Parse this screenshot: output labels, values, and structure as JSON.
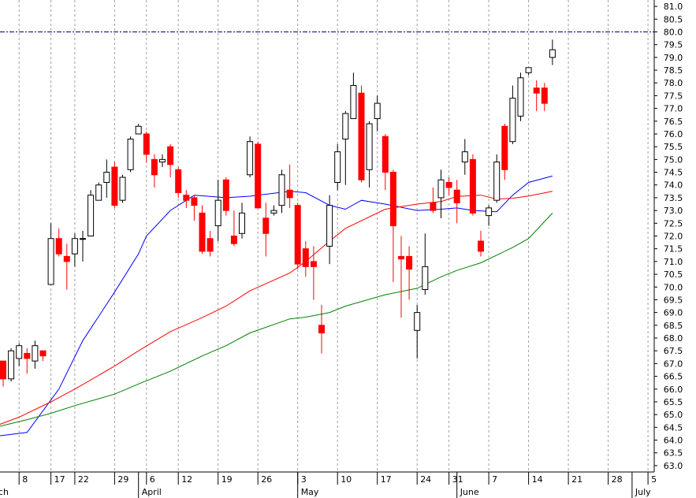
{
  "chart_data": {
    "type": "candlestick",
    "ylim": [
      62.75,
      81.25
    ],
    "y_ticks": [
      "63.0",
      "63.5",
      "64.0",
      "64.5",
      "65.0",
      "65.5",
      "66.0",
      "66.5",
      "67.0",
      "67.5",
      "68.0",
      "68.5",
      "69.0",
      "69.5",
      "70.0",
      "70.5",
      "71.0",
      "71.5",
      "72.0",
      "72.5",
      "73.0",
      "73.5",
      "74.0",
      "74.5",
      "75.0",
      "75.5",
      "76.0",
      "76.5",
      "77.0",
      "77.5",
      "78.0",
      "78.5",
      "79.0",
      "79.5",
      "80.0",
      "80.5",
      "81.0"
    ],
    "x_day_ticks": [
      {
        "label": "8",
        "col": 2
      },
      {
        "label": "17",
        "col": 6
      },
      {
        "label": "22",
        "col": 9
      },
      {
        "label": "29",
        "col": 14
      },
      {
        "label": "6",
        "col": 18
      },
      {
        "label": "12",
        "col": 22
      },
      {
        "label": "19",
        "col": 27
      },
      {
        "label": "26",
        "col": 32
      },
      {
        "label": "3",
        "col": 37
      },
      {
        "label": "10",
        "col": 42
      },
      {
        "label": "17",
        "col": 47
      },
      {
        "label": "24",
        "col": 52
      },
      {
        "label": "31",
        "col": 56
      },
      {
        "label": "7",
        "col": 61
      },
      {
        "label": "14",
        "col": 66
      },
      {
        "label": "21",
        "col": 71
      },
      {
        "label": "28",
        "col": 76
      },
      {
        "label": "5",
        "col": 81
      }
    ],
    "x_month_ticks": [
      {
        "label": "ch",
        "col": -1
      },
      {
        "label": "April",
        "col": 17
      },
      {
        "label": "May",
        "col": 37
      },
      {
        "label": "June",
        "col": 57
      },
      {
        "label": "July",
        "col": 79
      }
    ],
    "reference_level": 80.0,
    "candles": [
      [
        0,
        67.1,
        66.4,
        67.0,
        66.1
      ],
      [
        1,
        66.4,
        67.5,
        67.6,
        66.3
      ],
      [
        2,
        67.2,
        67.7,
        67.8,
        66.9
      ],
      [
        3,
        67.4,
        67.2,
        67.6,
        66.6
      ],
      [
        4,
        67.1,
        67.7,
        67.9,
        66.8
      ],
      [
        5,
        67.5,
        67.3,
        67.5,
        67.1
      ],
      [
        6,
        70.1,
        71.9,
        72.5,
        70.1
      ],
      [
        7,
        71.9,
        71.3,
        72.3,
        71.2
      ],
      [
        8,
        71.2,
        71.0,
        71.7,
        69.9
      ],
      [
        9,
        71.3,
        71.9,
        72.1,
        70.8
      ],
      [
        10,
        71.9,
        71.9,
        72.2,
        71.0
      ],
      [
        11,
        72.0,
        73.6,
        73.8,
        72.0
      ],
      [
        12,
        73.4,
        74.0,
        74.1,
        73.4
      ],
      [
        13,
        74.1,
        74.5,
        75.0,
        73.5
      ],
      [
        14,
        74.7,
        73.2,
        74.9,
        73.1
      ],
      [
        15,
        73.4,
        74.3,
        74.4,
        73.3
      ],
      [
        16,
        74.6,
        75.8,
        75.9,
        74.5
      ],
      [
        17,
        76.0,
        76.3,
        76.4,
        76.0
      ],
      [
        18,
        76.0,
        75.2,
        76.1,
        74.9
      ],
      [
        19,
        75.0,
        74.4,
        75.2,
        73.9
      ],
      [
        20,
        74.9,
        75.0,
        75.2,
        74.7
      ],
      [
        21,
        75.5,
        74.8,
        75.6,
        74.3
      ],
      [
        22,
        74.6,
        73.7,
        74.7,
        73.5
      ],
      [
        23,
        73.6,
        73.4,
        73.8,
        73.1
      ],
      [
        24,
        73.5,
        73.2,
        73.6,
        72.6
      ],
      [
        25,
        72.9,
        71.4,
        73.2,
        71.3
      ],
      [
        26,
        71.9,
        71.4,
        72.2,
        71.2
      ],
      [
        27,
        72.4,
        73.4,
        74.2,
        71.8
      ],
      [
        28,
        74.2,
        73.0,
        74.3,
        72.8
      ],
      [
        29,
        72.0,
        71.7,
        73.0,
        71.6
      ],
      [
        30,
        72.1,
        72.9,
        73.3,
        71.9
      ],
      [
        31,
        74.4,
        75.7,
        75.9,
        74.3
      ],
      [
        32,
        75.6,
        73.1,
        75.7,
        73.1
      ],
      [
        33,
        72.7,
        72.1,
        73.3,
        71.2
      ],
      [
        34,
        72.9,
        73.0,
        73.2,
        72.8
      ],
      [
        35,
        73.2,
        74.4,
        74.6,
        72.9
      ],
      [
        36,
        73.8,
        73.5,
        74.8,
        73.1
      ],
      [
        37,
        73.2,
        70.9,
        73.3,
        70.7
      ],
      [
        38,
        71.5,
        70.8,
        71.8,
        70.4
      ],
      [
        39,
        71.0,
        70.8,
        71.6,
        69.5
      ],
      [
        40,
        68.5,
        68.2,
        69.3,
        67.4
      ],
      [
        41,
        71.6,
        73.2,
        73.6,
        70.9
      ],
      [
        42,
        74.1,
        75.3,
        75.6,
        73.8
      ],
      [
        43,
        75.8,
        76.8,
        76.9,
        74.0
      ],
      [
        44,
        76.6,
        77.9,
        78.4,
        76.6
      ],
      [
        45,
        77.6,
        74.2,
        77.9,
        74.1
      ],
      [
        46,
        74.6,
        76.4,
        76.5,
        73.9
      ],
      [
        47,
        76.6,
        77.2,
        77.5,
        76.1
      ],
      [
        48,
        75.9,
        74.5,
        76.0,
        73.8
      ],
      [
        49,
        74.5,
        72.4,
        74.6,
        70.2
      ],
      [
        50,
        71.2,
        71.1,
        72.0,
        68.8
      ],
      [
        51,
        71.2,
        70.7,
        71.6,
        69.5
      ],
      [
        52,
        68.3,
        69.0,
        69.3,
        67.2
      ],
      [
        53,
        69.9,
        70.8,
        72.1,
        69.7
      ],
      [
        54,
        73.3,
        73.0,
        73.9,
        72.9
      ],
      [
        55,
        73.5,
        74.2,
        74.6,
        72.7
      ],
      [
        56,
        74.1,
        73.9,
        74.3,
        73.6
      ],
      [
        57,
        73.8,
        73.3,
        74.2,
        72.5
      ],
      [
        58,
        74.9,
        75.3,
        75.8,
        74.4
      ],
      [
        59,
        75.0,
        72.9,
        75.2,
        72.8
      ],
      [
        60,
        71.8,
        71.4,
        72.2,
        71.2
      ],
      [
        61,
        72.8,
        73.1,
        73.2,
        72.4
      ],
      [
        62,
        73.4,
        74.9,
        75.2,
        73.3
      ],
      [
        63,
        76.3,
        74.6,
        76.4,
        74.2
      ],
      [
        64,
        75.7,
        77.4,
        77.9,
        75.6
      ],
      [
        65,
        76.7,
        78.2,
        78.4,
        76.5
      ],
      [
        66,
        78.4,
        78.6,
        78.6,
        78.3
      ],
      [
        67,
        77.8,
        77.6,
        78.1,
        76.9
      ],
      [
        68,
        77.8,
        77.2,
        78.0,
        76.9
      ],
      [
        69,
        79.0,
        79.3,
        79.7,
        78.7
      ]
    ],
    "series": [
      {
        "color": "#0000ff",
        "values": [
          [
            -1,
            64.15
          ],
          [
            3,
            64.3
          ],
          [
            7,
            66.0
          ],
          [
            10,
            67.9
          ],
          [
            14,
            69.8
          ],
          [
            17,
            71.3
          ],
          [
            18,
            72.0
          ],
          [
            21,
            73.0
          ],
          [
            24,
            73.6
          ],
          [
            28,
            73.5
          ],
          [
            31,
            73.56
          ],
          [
            36,
            73.75
          ],
          [
            38,
            73.7
          ],
          [
            41,
            73.2
          ],
          [
            43,
            73.05
          ],
          [
            45,
            73.4
          ],
          [
            48,
            73.25
          ],
          [
            52,
            73.0
          ],
          [
            55,
            73.05
          ],
          [
            57,
            73.1
          ],
          [
            59,
            73.0
          ],
          [
            62,
            72.95
          ],
          [
            64,
            73.6
          ],
          [
            66,
            74.1
          ],
          [
            69,
            74.35
          ]
        ]
      },
      {
        "color": "#ff0000",
        "values": [
          [
            -1,
            64.55
          ],
          [
            2,
            64.9
          ],
          [
            6,
            65.5
          ],
          [
            9,
            66.0
          ],
          [
            14,
            66.9
          ],
          [
            17,
            67.5
          ],
          [
            21,
            68.25
          ],
          [
            25,
            68.8
          ],
          [
            28,
            69.25
          ],
          [
            31,
            69.85
          ],
          [
            36,
            70.55
          ],
          [
            38,
            71.0
          ],
          [
            41,
            71.8
          ],
          [
            43,
            72.3
          ],
          [
            48,
            73.05
          ],
          [
            52,
            73.25
          ],
          [
            55,
            73.35
          ],
          [
            57,
            73.55
          ],
          [
            60,
            73.6
          ],
          [
            62,
            73.45
          ],
          [
            64,
            73.48
          ],
          [
            66,
            73.57
          ],
          [
            69,
            73.75
          ]
        ]
      },
      {
        "color": "#008000",
        "values": [
          [
            -1,
            64.5
          ],
          [
            3,
            64.8
          ],
          [
            6,
            65.05
          ],
          [
            9,
            65.35
          ],
          [
            14,
            65.8
          ],
          [
            17,
            66.2
          ],
          [
            21,
            66.7
          ],
          [
            25,
            67.3
          ],
          [
            28,
            67.7
          ],
          [
            31,
            68.2
          ],
          [
            36,
            68.75
          ],
          [
            38,
            68.82
          ],
          [
            41,
            69.0
          ],
          [
            43,
            69.25
          ],
          [
            48,
            69.7
          ],
          [
            52,
            69.95
          ],
          [
            55,
            70.4
          ],
          [
            57,
            70.65
          ],
          [
            60,
            70.95
          ],
          [
            62,
            71.25
          ],
          [
            64,
            71.55
          ],
          [
            66,
            71.9
          ],
          [
            69,
            72.9
          ]
        ]
      }
    ]
  }
}
